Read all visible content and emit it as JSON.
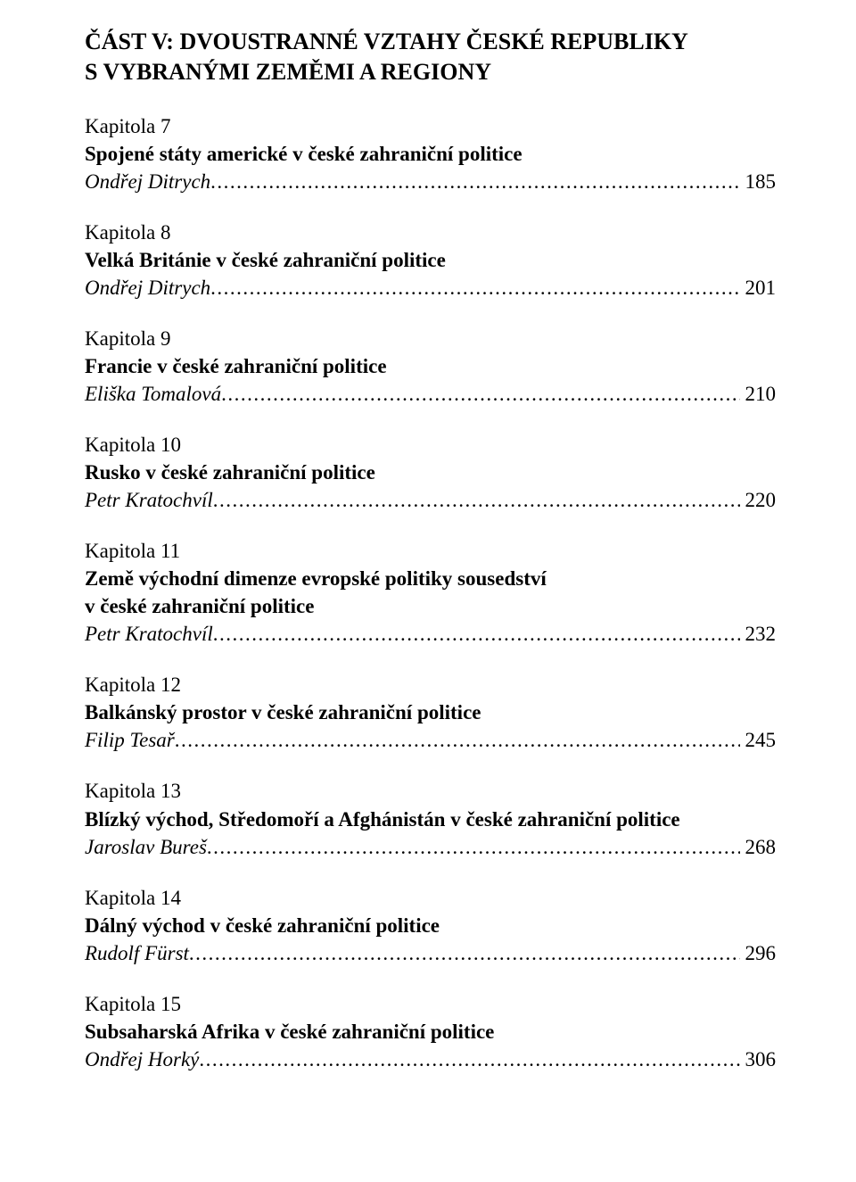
{
  "part": {
    "line1": "ČÁST V: DVOUSTRANNÉ VZTAHY ČESKÉ REPUBLIKY",
    "line2": "S VYBRANÝMI ZEMĚMI A REGIONY"
  },
  "entries": [
    {
      "chapter": "Kapitola 7",
      "title_lines": [
        "Spojené státy americké v české zahraniční politice"
      ],
      "author": "Ondřej Ditrych",
      "page": "185"
    },
    {
      "chapter": "Kapitola 8",
      "title_lines": [
        "Velká Británie v české zahraniční politice"
      ],
      "author": "Ondřej Ditrych",
      "page": "201"
    },
    {
      "chapter": "Kapitola 9",
      "title_lines": [
        "Francie v české zahraniční politice"
      ],
      "author": "Eliška Tomalová",
      "page": "210"
    },
    {
      "chapter": "Kapitola 10",
      "title_lines": [
        "Rusko v české zahraniční politice"
      ],
      "author": "Petr Kratochvíl",
      "page": "220"
    },
    {
      "chapter": "Kapitola 11",
      "title_lines": [
        "Země východní dimenze evropské politiky sousedství",
        "v české zahraniční politice"
      ],
      "author": "Petr Kratochvíl",
      "page": "232"
    },
    {
      "chapter": "Kapitola 12",
      "title_lines": [
        "Balkánský prostor v české zahraniční politice"
      ],
      "author": "Filip Tesař",
      "page": "245"
    },
    {
      "chapter": "Kapitola 13",
      "title_lines": [
        "Blízký východ, Středomoří a Afghánistán v české zahraniční politice"
      ],
      "author": "Jaroslav Bureš",
      "page": "268"
    },
    {
      "chapter": "Kapitola 14",
      "title_lines": [
        "Dálný východ v české zahraniční politice"
      ],
      "author": "Rudolf Fürst",
      "page": "296"
    },
    {
      "chapter": "Kapitola 15",
      "title_lines": [
        "Subsaharská Afrika v české zahraniční politice"
      ],
      "author": "Ondřej Horký",
      "page": "306"
    }
  ]
}
